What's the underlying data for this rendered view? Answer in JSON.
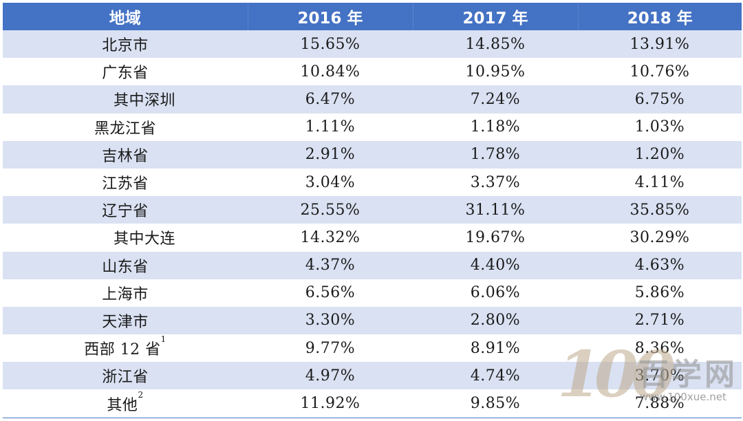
{
  "table": {
    "headers": [
      "地域",
      "2016 年",
      "2017 年",
      "2018 年"
    ],
    "rows": [
      {
        "region": "北京市",
        "indent": false,
        "sup": "",
        "v2016": "15.65%",
        "v2017": "14.85%",
        "v2018": "13.91%"
      },
      {
        "region": "广东省",
        "indent": false,
        "sup": "",
        "v2016": "10.84%",
        "v2017": "10.95%",
        "v2018": "10.76%"
      },
      {
        "region": "其中深圳",
        "indent": true,
        "sup": "",
        "v2016": "6.47%",
        "v2017": "7.24%",
        "v2018": "6.75%"
      },
      {
        "region": "黑龙江省",
        "indent": false,
        "sup": "",
        "v2016": "1.11%",
        "v2017": "1.18%",
        "v2018": "1.03%"
      },
      {
        "region": "吉林省",
        "indent": false,
        "sup": "",
        "v2016": "2.91%",
        "v2017": "1.78%",
        "v2018": "1.20%"
      },
      {
        "region": "江苏省",
        "indent": false,
        "sup": "",
        "v2016": "3.04%",
        "v2017": "3.37%",
        "v2018": "4.11%"
      },
      {
        "region": "辽宁省",
        "indent": false,
        "sup": "",
        "v2016": "25.55%",
        "v2017": "31.11%",
        "v2018": "35.85%"
      },
      {
        "region": "其中大连",
        "indent": true,
        "sup": "",
        "v2016": "14.32%",
        "v2017": "19.67%",
        "v2018": "30.29%"
      },
      {
        "region": "山东省",
        "indent": false,
        "sup": "",
        "v2016": "4.37%",
        "v2017": "4.40%",
        "v2018": "4.63%"
      },
      {
        "region": "上海市",
        "indent": false,
        "sup": "",
        "v2016": "6.56%",
        "v2017": "6.06%",
        "v2018": "5.86%"
      },
      {
        "region": "天津市",
        "indent": false,
        "sup": "",
        "v2016": "3.30%",
        "v2017": "2.80%",
        "v2018": "2.71%"
      },
      {
        "region": "西部 12 省",
        "indent": false,
        "sup": "1",
        "v2016": "9.77%",
        "v2017": "8.91%",
        "v2018": "8.36%"
      },
      {
        "region": "浙江省",
        "indent": false,
        "sup": "",
        "v2016": "4.97%",
        "v2017": "4.74%",
        "v2018": "3.70%"
      },
      {
        "region": "其他",
        "indent": false,
        "sup": "2",
        "v2016": "11.92%",
        "v2017": "9.85%",
        "v2018": "7.88%"
      }
    ]
  },
  "watermark": {
    "logo_digits": "100",
    "logo_text": "百学网",
    "url": "www.100xue.net"
  },
  "colors": {
    "header_bg": "#4472c4",
    "band_bg": "#d9e1f2"
  }
}
